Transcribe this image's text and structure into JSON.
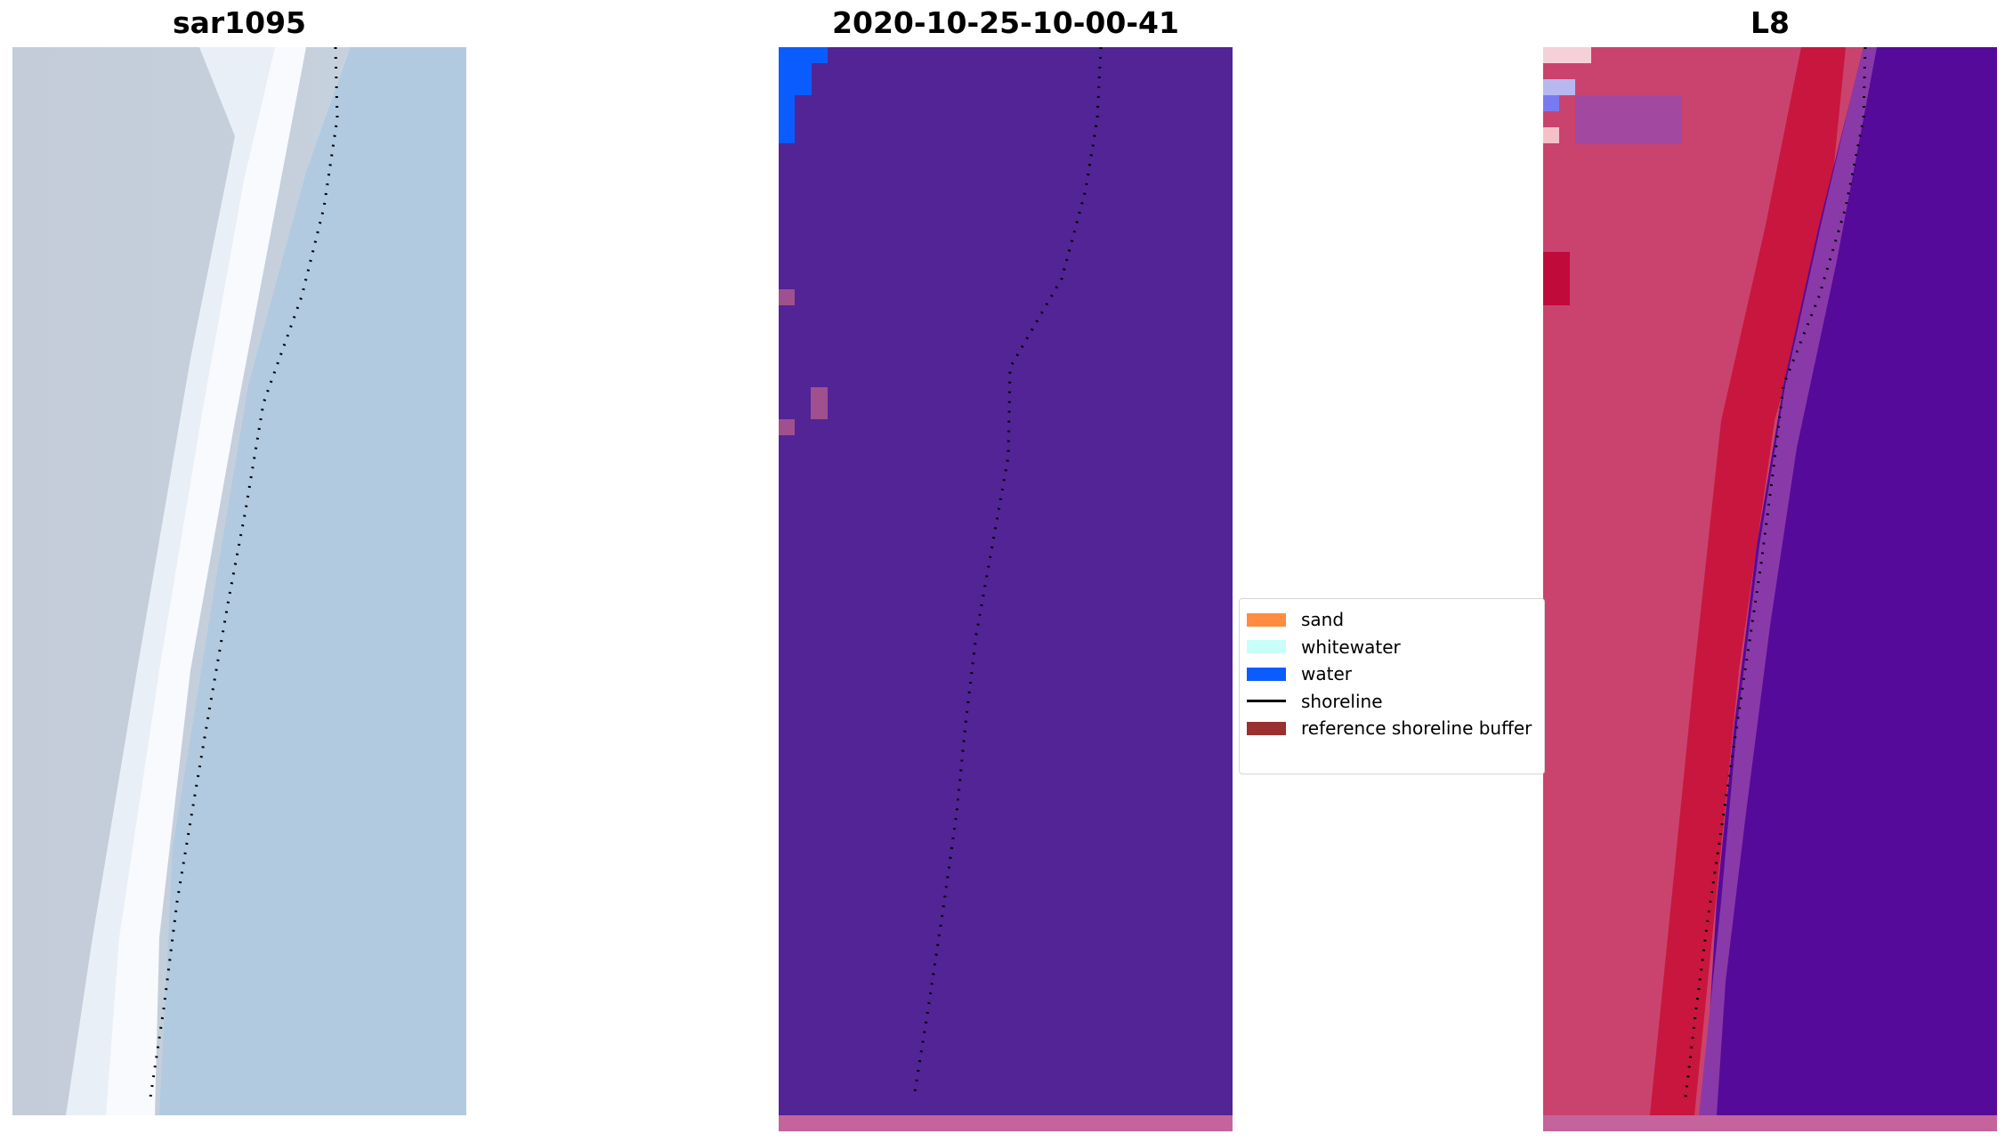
{
  "panels": [
    {
      "title": "sar1095"
    },
    {
      "title": "2020-10-25-10-00-41"
    },
    {
      "title": "L8"
    }
  ],
  "legend": {
    "items": [
      {
        "label": "sand",
        "color": "#ff8c40",
        "kind": "patch"
      },
      {
        "label": "whitewater",
        "color": "#c8fff8",
        "kind": "patch"
      },
      {
        "label": "water",
        "color": "#0a5cff",
        "kind": "patch"
      },
      {
        "label": "shoreline",
        "color": "#000000",
        "kind": "line"
      },
      {
        "label": "reference shoreline buffer",
        "color": "#9a3030",
        "kind": "patch"
      }
    ]
  },
  "colors": {
    "classified_background": "#522496",
    "buffer_strip": "#c4649a",
    "water_patch": "#0a5cff",
    "rgb_sand": "#c2cfdf",
    "rgb_whitewater": "#f5f8fc",
    "rgb_water": "#b1cae0",
    "l8_land": "#c9436e",
    "l8_water": "#560a9a"
  }
}
